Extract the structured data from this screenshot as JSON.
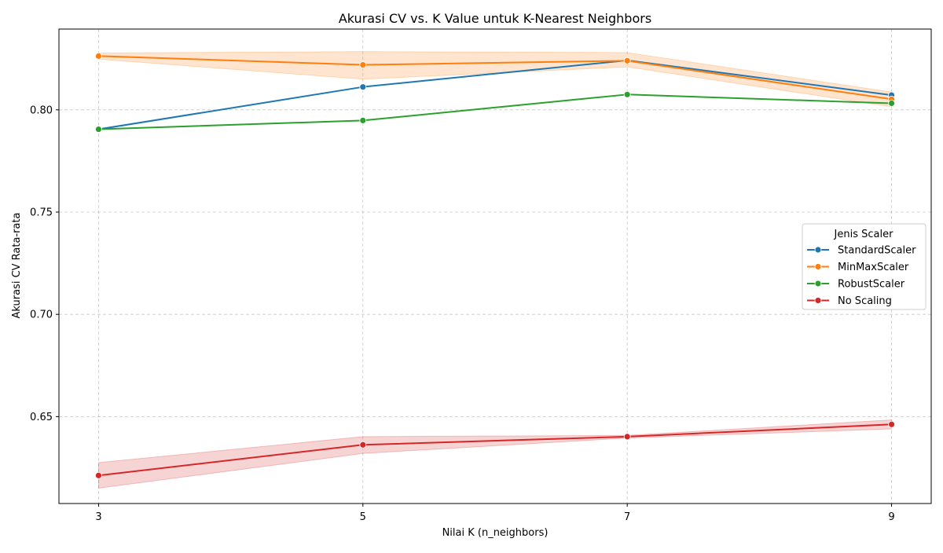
{
  "chart_data": {
    "type": "line",
    "title": "Akurasi CV vs. K Value untuk K-Nearest Neighbors",
    "xlabel": "Nilai K (n_neighbors)",
    "ylabel": "Akurasi CV Rata-rata",
    "x": [
      3,
      5,
      7,
      9
    ],
    "x_ticks": [
      "3",
      "5",
      "7",
      "9"
    ],
    "xlim": [
      2.7,
      9.3
    ],
    "y_ticks": [
      0.65,
      0.7,
      0.75,
      0.8
    ],
    "y_tick_labels": [
      "0.65",
      "0.70",
      "0.75",
      "0.80"
    ],
    "ylim": [
      0.6075,
      0.8395
    ],
    "grid": true,
    "legend": {
      "title": "Jenis Scaler",
      "placement": "center-right"
    },
    "series": [
      {
        "name": "StandardScaler",
        "color": "#1f77b4",
        "values": [
          0.7905,
          0.8112,
          0.8242,
          0.8072
        ]
      },
      {
        "name": "MinMaxScaler",
        "color": "#ff7f0e",
        "values": [
          0.8263,
          0.822,
          0.824,
          0.8052
        ],
        "ci_lower": [
          0.8248,
          0.815,
          0.821,
          0.8015
        ],
        "ci_upper": [
          0.8278,
          0.8285,
          0.828,
          0.8087
        ]
      },
      {
        "name": "RobustScaler",
        "color": "#2ca02c",
        "values": [
          0.7905,
          0.7948,
          0.8075,
          0.8032
        ]
      },
      {
        "name": "No Scaling",
        "color": "#d62728",
        "values": [
          0.6212,
          0.6362,
          0.6402,
          0.6462
        ],
        "ci_lower": [
          0.615,
          0.632,
          0.6395,
          0.644
        ],
        "ci_upper": [
          0.6275,
          0.6402,
          0.6408,
          0.6484
        ]
      }
    ]
  }
}
